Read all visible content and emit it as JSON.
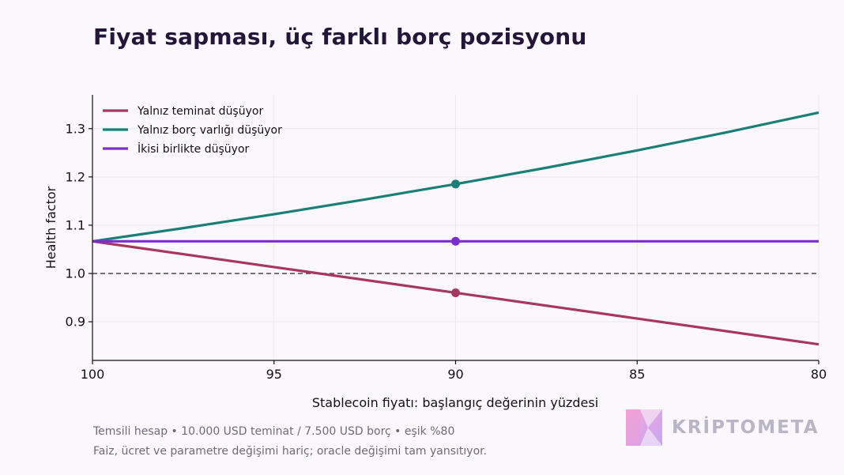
{
  "title": "Fiyat sapması, üç farklı borç pozisyonu",
  "footnotes": {
    "line1": "Temsili hesap • 10.000 USD teminat / 7.500 USD borç • eşik %80",
    "line2": "Faiz, ücret ve parametre değişimi hariç; oracle değişimi tam yansıtıyor."
  },
  "brand": {
    "name": "KRİPTOMETA",
    "logo_icon": "kriptometa-logo-icon"
  },
  "chart_data": {
    "type": "line",
    "xlabel": "Stablecoin fiyatı: başlangıç değerinin yüzdesi",
    "ylabel": "Health factor",
    "xlim": [
      100,
      80
    ],
    "ylim": [
      0.82,
      1.37
    ],
    "x_inverted": true,
    "xticks": [
      100,
      95,
      90,
      85,
      80
    ],
    "yticks": [
      0.9,
      1.0,
      1.1,
      1.2,
      1.3
    ],
    "ytick_labels": [
      "0.9",
      "1.0",
      "1.1",
      "1.2",
      "1.3"
    ],
    "grid": true,
    "legend_position": "top-left",
    "threshold": {
      "y": 1.0,
      "style": "dashed",
      "color": "#555555"
    },
    "series": [
      {
        "name": "Yalnız teminat düşüyor",
        "color": "#a8365f",
        "x": [
          100,
          95,
          90,
          85,
          80
        ],
        "y": [
          1.0667,
          1.0133,
          0.96,
          0.9067,
          0.8533
        ]
      },
      {
        "name": "Yalnız borç varlığı düşüyor",
        "color": "#1a7f76",
        "x": [
          100,
          97.5,
          95,
          92.5,
          90,
          87.5,
          85,
          82.5,
          80
        ],
        "y": [
          1.0667,
          1.094,
          1.1228,
          1.1532,
          1.1852,
          1.219,
          1.2549,
          1.2929,
          1.3333
        ]
      },
      {
        "name": "İkisi birlikte düşüyor",
        "color": "#7a2fcc",
        "x": [
          100,
          80
        ],
        "y": [
          1.0667,
          1.0667
        ]
      }
    ],
    "markers": [
      {
        "series": 0,
        "x": 90,
        "y": 0.96
      },
      {
        "series": 1,
        "x": 90,
        "y": 1.1852
      },
      {
        "series": 2,
        "x": 90,
        "y": 1.0667
      }
    ]
  }
}
